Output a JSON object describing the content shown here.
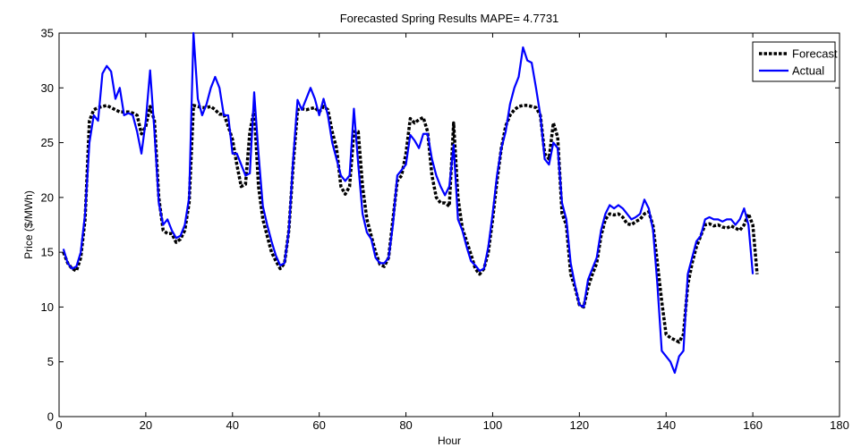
{
  "chart_data": {
    "type": "line",
    "title": "Forecasted Spring Results MAPE= 4.7731",
    "xlabel": "Hour",
    "ylabel": "Price ($/MWh)",
    "xlim": [
      0,
      180
    ],
    "ylim": [
      0,
      35
    ],
    "xticks": [
      0,
      20,
      40,
      60,
      80,
      100,
      120,
      140,
      160,
      180
    ],
    "yticks": [
      0,
      5,
      10,
      15,
      20,
      25,
      30,
      35
    ],
    "grid": false,
    "legend_position": "top-right",
    "series": [
      {
        "name": "Forecast",
        "color": "#000000",
        "style": "dotted",
        "points": [
          [
            1,
            15
          ],
          [
            2,
            14
          ],
          [
            3,
            13.5
          ],
          [
            4,
            13.3
          ],
          [
            5,
            14.5
          ],
          [
            6,
            18
          ],
          [
            7,
            27
          ],
          [
            8,
            28
          ],
          [
            9,
            28.2
          ],
          [
            10,
            28.3
          ],
          [
            11,
            28.4
          ],
          [
            12,
            28.2
          ],
          [
            13,
            28
          ],
          [
            14,
            27.8
          ],
          [
            15,
            27.8
          ],
          [
            16,
            27.8
          ],
          [
            17,
            27.7
          ],
          [
            18,
            27.5
          ],
          [
            19,
            25.8
          ],
          [
            20,
            26.5
          ],
          [
            21,
            28.3
          ],
          [
            22,
            27
          ],
          [
            23,
            20
          ],
          [
            24,
            17
          ],
          [
            25,
            16.7
          ],
          [
            26,
            16.7
          ],
          [
            27,
            15.9
          ],
          [
            28,
            16.2
          ],
          [
            29,
            17
          ],
          [
            30,
            19.5
          ],
          [
            31,
            28.4
          ],
          [
            32,
            28.3
          ],
          [
            33,
            28.2
          ],
          [
            34,
            28.2
          ],
          [
            35,
            28.3
          ],
          [
            36,
            28
          ],
          [
            37,
            27.6
          ],
          [
            38,
            27.6
          ],
          [
            39,
            26.5
          ],
          [
            40,
            25.3
          ],
          [
            41,
            23
          ],
          [
            42,
            21
          ],
          [
            43,
            21.2
          ],
          [
            44,
            26
          ],
          [
            45,
            28
          ],
          [
            46,
            21
          ],
          [
            47,
            18
          ],
          [
            48,
            16.5
          ],
          [
            49,
            15
          ],
          [
            50,
            14.2
          ],
          [
            51,
            13.5
          ],
          [
            52,
            14
          ],
          [
            53,
            17
          ],
          [
            54,
            23
          ],
          [
            55,
            28
          ],
          [
            56,
            28.1
          ],
          [
            57,
            28
          ],
          [
            58,
            28.1
          ],
          [
            59,
            28.2
          ],
          [
            60,
            27.8
          ],
          [
            61,
            28.3
          ],
          [
            62,
            28
          ],
          [
            63,
            26
          ],
          [
            64,
            24.5
          ],
          [
            65,
            21
          ],
          [
            66,
            20.3
          ],
          [
            67,
            21
          ],
          [
            68,
            26
          ],
          [
            69,
            26
          ],
          [
            70,
            21
          ],
          [
            71,
            18
          ],
          [
            72,
            16.5
          ],
          [
            73,
            15
          ],
          [
            74,
            13.9
          ],
          [
            75,
            13.7
          ],
          [
            76,
            14.5
          ],
          [
            77,
            18
          ],
          [
            78,
            21.5
          ],
          [
            79,
            22
          ],
          [
            80,
            24
          ],
          [
            81,
            27.2
          ],
          [
            82,
            26.8
          ],
          [
            83,
            27.1
          ],
          [
            84,
            27.3
          ],
          [
            85,
            26
          ],
          [
            86,
            22
          ],
          [
            87,
            20
          ],
          [
            88,
            19.5
          ],
          [
            89,
            19.5
          ],
          [
            90,
            19.2
          ],
          [
            91,
            26.8
          ],
          [
            92,
            20
          ],
          [
            93,
            17.2
          ],
          [
            94,
            16
          ],
          [
            95,
            14.8
          ],
          [
            96,
            13.5
          ],
          [
            97,
            13
          ],
          [
            98,
            13.5
          ],
          [
            99,
            15
          ],
          [
            100,
            18
          ],
          [
            101,
            21.5
          ],
          [
            102,
            24.5
          ],
          [
            103,
            26.5
          ],
          [
            104,
            27.5
          ],
          [
            105,
            28
          ],
          [
            106,
            28.3
          ],
          [
            107,
            28.4
          ],
          [
            108,
            28.4
          ],
          [
            109,
            28.3
          ],
          [
            110,
            28.2
          ],
          [
            111,
            27.5
          ],
          [
            112,
            24
          ],
          [
            113,
            23.5
          ],
          [
            114,
            26.8
          ],
          [
            115,
            25.5
          ],
          [
            116,
            18.5
          ],
          [
            117,
            17.5
          ],
          [
            118,
            13
          ],
          [
            119,
            11.8
          ],
          [
            120,
            10.2
          ],
          [
            121,
            10
          ],
          [
            122,
            11.8
          ],
          [
            123,
            13
          ],
          [
            124,
            14
          ],
          [
            125,
            16.5
          ],
          [
            126,
            18
          ],
          [
            127,
            18.5
          ],
          [
            128,
            18.4
          ],
          [
            129,
            18.5
          ],
          [
            130,
            18.2
          ],
          [
            131,
            17.6
          ],
          [
            132,
            17.5
          ],
          [
            133,
            17.8
          ],
          [
            134,
            18
          ],
          [
            135,
            18.5
          ],
          [
            136,
            18.7
          ],
          [
            137,
            17.4
          ],
          [
            138,
            14
          ],
          [
            139,
            10.5
          ],
          [
            140,
            7.5
          ],
          [
            141,
            7.2
          ],
          [
            142,
            7
          ],
          [
            143,
            6.8
          ],
          [
            144,
            7.5
          ],
          [
            145,
            12
          ],
          [
            146,
            14
          ],
          [
            147,
            15.5
          ],
          [
            148,
            16.5
          ],
          [
            149,
            17.5
          ],
          [
            150,
            17.6
          ],
          [
            151,
            17.4
          ],
          [
            152,
            17.5
          ],
          [
            153,
            17.3
          ],
          [
            154,
            17.2
          ],
          [
            155,
            17.4
          ],
          [
            156,
            17.2
          ],
          [
            157,
            17
          ],
          [
            158,
            17.5
          ],
          [
            159,
            18.5
          ],
          [
            160,
            17.5
          ],
          [
            161,
            13
          ]
        ]
      },
      {
        "name": "Actual",
        "color": "#0000ff",
        "style": "solid",
        "points": [
          [
            1,
            15.3
          ],
          [
            2,
            14
          ],
          [
            3,
            13.5
          ],
          [
            4,
            13.7
          ],
          [
            5,
            15
          ],
          [
            6,
            18.5
          ],
          [
            7,
            25
          ],
          [
            8,
            27.5
          ],
          [
            9,
            27
          ],
          [
            10,
            31.3
          ],
          [
            11,
            32
          ],
          [
            12,
            31.5
          ],
          [
            13,
            29
          ],
          [
            14,
            30
          ],
          [
            15,
            27.5
          ],
          [
            16,
            27.7
          ],
          [
            17,
            27.5
          ],
          [
            18,
            26
          ],
          [
            19,
            24
          ],
          [
            20,
            27
          ],
          [
            21,
            31.6
          ],
          [
            22,
            26
          ],
          [
            23,
            19.5
          ],
          [
            24,
            17.5
          ],
          [
            25,
            18
          ],
          [
            26,
            17
          ],
          [
            27,
            16.3
          ],
          [
            28,
            16.5
          ],
          [
            29,
            17.5
          ],
          [
            30,
            20
          ],
          [
            31,
            35
          ],
          [
            32,
            29
          ],
          [
            33,
            27.5
          ],
          [
            34,
            28.5
          ],
          [
            35,
            30
          ],
          [
            36,
            31
          ],
          [
            37,
            30
          ],
          [
            38,
            27.5
          ],
          [
            39,
            27.5
          ],
          [
            40,
            24
          ],
          [
            41,
            24
          ],
          [
            42,
            23
          ],
          [
            43,
            22
          ],
          [
            44,
            22.2
          ],
          [
            45,
            29.6
          ],
          [
            46,
            24
          ],
          [
            47,
            19.2
          ],
          [
            48,
            17.5
          ],
          [
            49,
            16
          ],
          [
            50,
            14.7
          ],
          [
            51,
            13.8
          ],
          [
            52,
            14
          ],
          [
            53,
            17
          ],
          [
            54,
            23.5
          ],
          [
            55,
            28.9
          ],
          [
            56,
            28
          ],
          [
            57,
            29
          ],
          [
            58,
            30
          ],
          [
            59,
            29
          ],
          [
            60,
            27.5
          ],
          [
            61,
            29
          ],
          [
            62,
            27.5
          ],
          [
            63,
            25
          ],
          [
            64,
            23.5
          ],
          [
            65,
            22
          ],
          [
            66,
            21.5
          ],
          [
            67,
            22
          ],
          [
            68,
            28.1
          ],
          [
            69,
            23
          ],
          [
            70,
            18.5
          ],
          [
            71,
            16.8
          ],
          [
            72,
            16.2
          ],
          [
            73,
            14.5
          ],
          [
            74,
            14
          ],
          [
            75,
            14
          ],
          [
            76,
            14.5
          ],
          [
            77,
            17.5
          ],
          [
            78,
            22
          ],
          [
            79,
            22.5
          ],
          [
            80,
            23
          ],
          [
            81,
            25.7
          ],
          [
            82,
            25.2
          ],
          [
            83,
            24.5
          ],
          [
            84,
            25.8
          ],
          [
            85,
            25.8
          ],
          [
            86,
            23.5
          ],
          [
            87,
            22
          ],
          [
            88,
            21
          ],
          [
            89,
            20.2
          ],
          [
            90,
            21
          ],
          [
            91,
            24.8
          ],
          [
            92,
            18
          ],
          [
            93,
            17
          ],
          [
            94,
            15.5
          ],
          [
            95,
            14.2
          ],
          [
            96,
            13.8
          ],
          [
            97,
            13.3
          ],
          [
            98,
            13.5
          ],
          [
            99,
            15.5
          ],
          [
            100,
            18.5
          ],
          [
            101,
            22
          ],
          [
            102,
            24.5
          ],
          [
            103,
            26
          ],
          [
            104,
            28.5
          ],
          [
            105,
            30
          ],
          [
            106,
            31
          ],
          [
            107,
            33.7
          ],
          [
            108,
            32.5
          ],
          [
            109,
            32.3
          ],
          [
            110,
            30
          ],
          [
            111,
            27.5
          ],
          [
            112,
            23.5
          ],
          [
            113,
            23
          ],
          [
            114,
            25
          ],
          [
            115,
            24.5
          ],
          [
            116,
            19.5
          ],
          [
            117,
            18
          ],
          [
            118,
            14
          ],
          [
            119,
            12
          ],
          [
            120,
            10.2
          ],
          [
            121,
            10
          ],
          [
            122,
            12.5
          ],
          [
            123,
            13.5
          ],
          [
            124,
            14.5
          ],
          [
            125,
            17
          ],
          [
            126,
            18.5
          ],
          [
            127,
            19.3
          ],
          [
            128,
            19
          ],
          [
            129,
            19.3
          ],
          [
            130,
            19
          ],
          [
            131,
            18.5
          ],
          [
            132,
            18
          ],
          [
            133,
            18.2
          ],
          [
            134,
            18.5
          ],
          [
            135,
            19.8
          ],
          [
            136,
            19
          ],
          [
            137,
            17
          ],
          [
            138,
            12
          ],
          [
            139,
            6
          ],
          [
            140,
            5.5
          ],
          [
            141,
            5
          ],
          [
            142,
            4
          ],
          [
            143,
            5.5
          ],
          [
            144,
            6
          ],
          [
            145,
            13
          ],
          [
            146,
            14.5
          ],
          [
            147,
            16
          ],
          [
            148,
            16.5
          ],
          [
            149,
            18
          ],
          [
            150,
            18.2
          ],
          [
            151,
            18
          ],
          [
            152,
            18
          ],
          [
            153,
            17.8
          ],
          [
            154,
            18
          ],
          [
            155,
            18
          ],
          [
            156,
            17.5
          ],
          [
            157,
            18
          ],
          [
            158,
            19
          ],
          [
            159,
            17.5
          ],
          [
            160,
            13
          ]
        ]
      }
    ]
  }
}
